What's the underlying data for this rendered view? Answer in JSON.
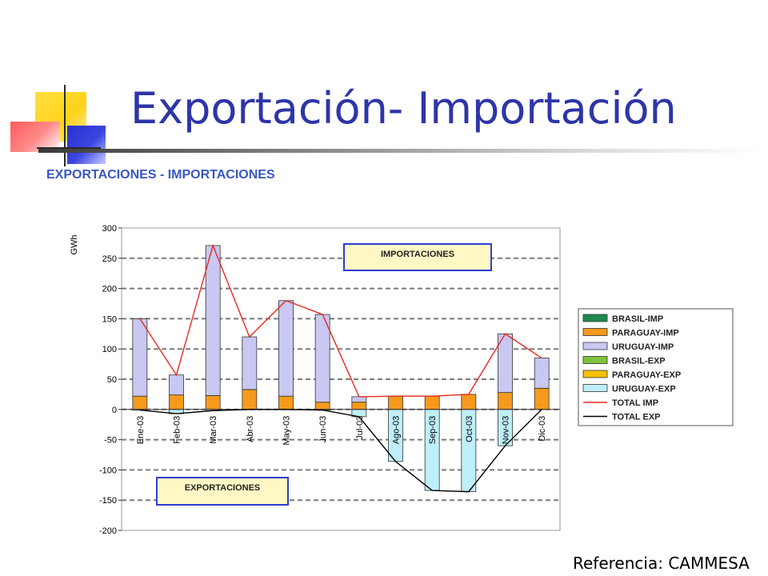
{
  "slide": {
    "title": "Exportación- Importación",
    "reference": "Referencia: CAMMESA"
  },
  "chart_data": {
    "type": "bar",
    "title": "EXPORTACIONES - IMPORTACIONES",
    "ylabel": "GWh",
    "xlabel": "",
    "ylim": [
      -200,
      300
    ],
    "yticks": [
      300,
      250,
      200,
      150,
      100,
      50,
      0,
      -50,
      -100,
      -150,
      -200
    ],
    "grid": "dashed horizontal",
    "legend_position": "right",
    "categories": [
      "Ene-03",
      "Feb-03",
      "Mar-03",
      "Abr-03",
      "May-03",
      "Jun-03",
      "Jul-03",
      "Ago-03",
      "Sep-03",
      "Oct-03",
      "Nov-03",
      "Dic-03"
    ],
    "series": [
      {
        "name": "BRASIL-IMP",
        "kind": "bar",
        "color": "#1e8a50",
        "values": [
          0,
          0,
          0,
          0,
          0,
          0,
          0,
          0,
          0,
          0,
          0,
          0
        ]
      },
      {
        "name": "PARAGUAY-IMP",
        "kind": "bar",
        "color": "#f59a1c",
        "values": [
          22,
          24,
          23,
          33,
          22,
          12,
          12,
          22,
          22,
          25,
          28,
          35
        ]
      },
      {
        "name": "URUGUAY-IMP",
        "kind": "bar",
        "color": "#c8c8f2",
        "values": [
          128,
          33,
          248,
          87,
          158,
          145,
          9,
          0,
          0,
          0,
          97,
          50
        ]
      },
      {
        "name": "BRASIL-EXP",
        "kind": "bar",
        "color": "#7cc43c",
        "values": [
          0,
          0,
          0,
          0,
          0,
          0,
          0,
          0,
          0,
          0,
          0,
          0
        ]
      },
      {
        "name": "PARAGUAY-EXP",
        "kind": "bar",
        "color": "#f5c000",
        "values": [
          0,
          0,
          0,
          0,
          0,
          0,
          0,
          0,
          0,
          0,
          0,
          0
        ]
      },
      {
        "name": "URUGUAY-EXP",
        "kind": "bar",
        "color": "#bfeffa",
        "values": [
          -1,
          -7,
          -2,
          0,
          0,
          -1,
          -12,
          -86,
          -134,
          -136,
          -60,
          0
        ]
      },
      {
        "name": "TOTAL IMP",
        "kind": "line",
        "color": "#e8281e",
        "values": [
          150,
          57,
          271,
          120,
          180,
          157,
          21,
          22,
          22,
          25,
          125,
          85
        ]
      },
      {
        "name": "TOTAL EXP",
        "kind": "line",
        "color": "#000000",
        "values": [
          -1,
          -7,
          -2,
          0,
          0,
          -1,
          -12,
          -86,
          -134,
          -136,
          -60,
          0
        ]
      }
    ],
    "annotations": [
      {
        "text": "IMPORTACIONES"
      },
      {
        "text": "EXPORTACIONES"
      }
    ]
  },
  "colors": {
    "title": "#2e35a8",
    "chart_header": "#3b56c2",
    "plot_background": "#ffffff",
    "grid": "#7a7a7a",
    "annotation_fill": "#fff8c4",
    "annotation_border": "#2d3ed0"
  }
}
